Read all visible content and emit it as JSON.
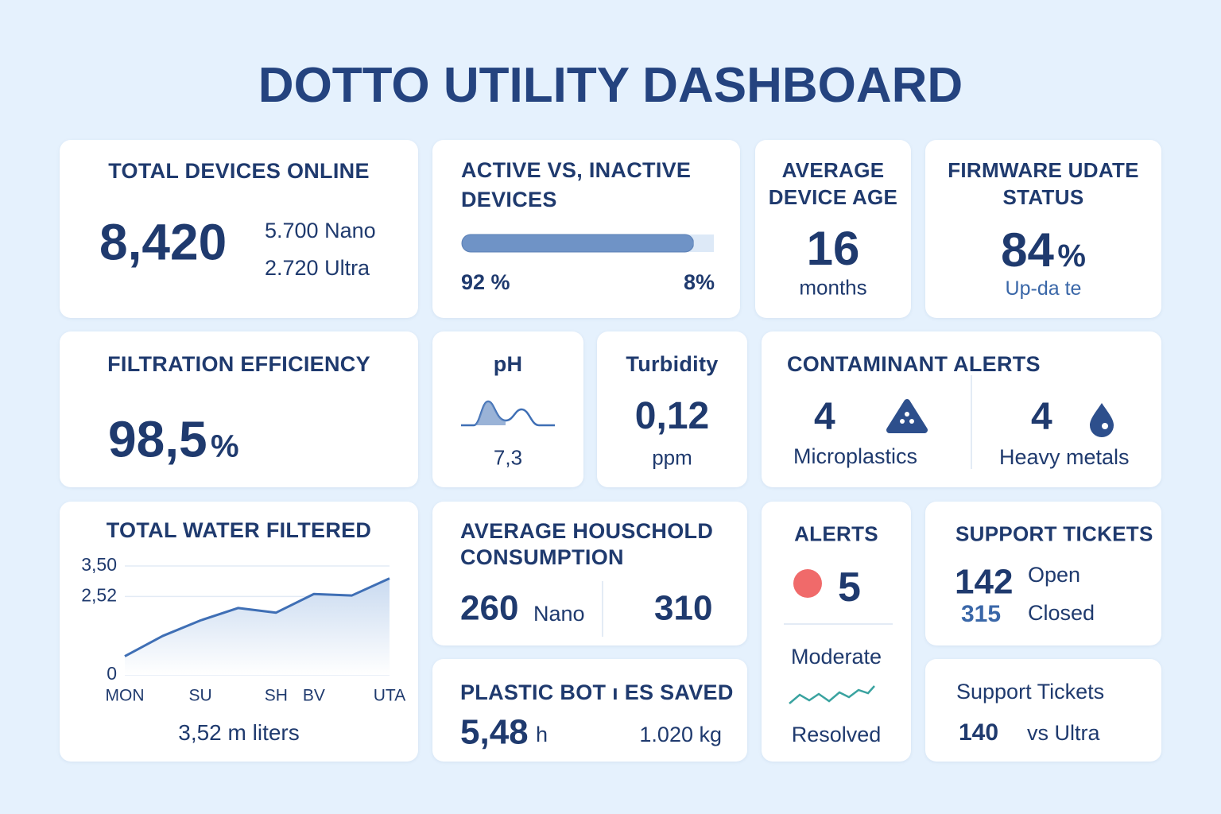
{
  "header": {
    "title": "DOTTO UTILITY DASHBOARD"
  },
  "total_devices": {
    "title": "TOTAL DEVICES ONLINE",
    "value": "8,420",
    "breakdown": [
      "5.700 Nano",
      "2.720 Ultra"
    ]
  },
  "active_inactive": {
    "title": "ACTIVE VS, INACTIVE DEVICES",
    "values": [
      92,
      8
    ],
    "value_labels": [
      "92 %",
      "8%"
    ],
    "colors": [
      "#6f93c6",
      "#dde9f7"
    ]
  },
  "device_age": {
    "title": "AVERAGE DEVICE AGE",
    "value": "16",
    "unit": "months"
  },
  "firmware": {
    "title": "FIRMWARE UDATE STATUS",
    "value": "84",
    "unit": "%",
    "status": "Up-da te"
  },
  "filtration": {
    "title": "FILTRATION EFFICIENCY",
    "value": "98,5",
    "unit": "%"
  },
  "ph": {
    "title": "pH",
    "value": "7,3"
  },
  "turbidity": {
    "title": "Turbidity",
    "value": "0,12",
    "unit": "ppm"
  },
  "contaminants": {
    "title": "CONTAMINANT ALERTS",
    "items": [
      {
        "count": "4",
        "label": "Microplastics"
      },
      {
        "count": "4",
        "label": "Heavy metals"
      }
    ]
  },
  "chart_data": {
    "type": "line",
    "title": "TOTAL WATER FILTERED",
    "categories": [
      "MON",
      null,
      "SU",
      null,
      "SH",
      "BV",
      null,
      "UTA"
    ],
    "values": [
      0.6,
      1.25,
      1.75,
      2.15,
      2.0,
      2.6,
      2.55,
      3.1
    ],
    "color": "#3f6fb5",
    "ylim": [
      0,
      3.5
    ],
    "yticks": [
      {
        "value": 3.5,
        "label": "3,50"
      },
      {
        "value": 2.52,
        "label": "2,52"
      },
      0
    ],
    "grid": true,
    "annotation": "3,52 m liters"
  },
  "household": {
    "title": "AVERAGE HOUSCHOLD CONSUMPTION",
    "nano": "260",
    "nano_label": "Nano",
    "ultra": "310"
  },
  "plastic": {
    "title": "PLASTIC BOT ı ES SAVED",
    "value": "5,48",
    "value_unit": "h",
    "weight": "1.020 kg"
  },
  "alerts": {
    "title": "ALERTS",
    "count": "5",
    "level": "Moderate",
    "status": "Resolved"
  },
  "support": {
    "title": "SUPPORT TICKETS",
    "open": "142",
    "open_label": "Open",
    "closed": "315",
    "closed_label": "Closed"
  },
  "support_compare": {
    "title": "Support Tickets",
    "value": "140",
    "label": "vs Ultra"
  }
}
